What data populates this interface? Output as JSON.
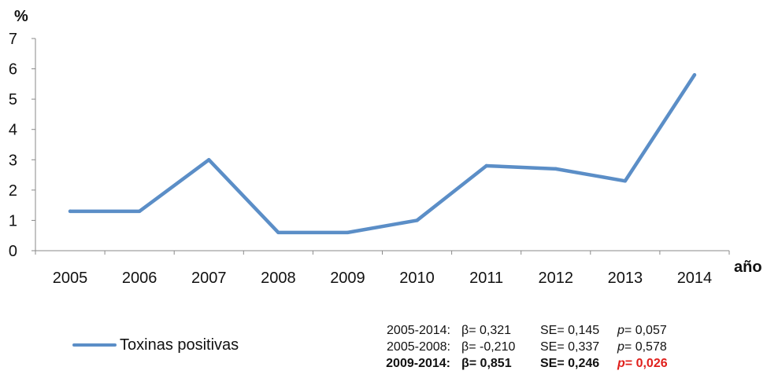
{
  "chart_data": {
    "type": "line",
    "y_unit_label": "%",
    "x_unit_label": "año",
    "categories": [
      "2005",
      "2006",
      "2007",
      "2008",
      "2009",
      "2010",
      "2011",
      "2012",
      "2013",
      "2014"
    ],
    "series": [
      {
        "name": "Toxinas positivas",
        "values": [
          1.3,
          1.3,
          3.0,
          0.6,
          0.6,
          1.0,
          2.8,
          2.7,
          2.3,
          5.8
        ],
        "color": "#5b8ec7"
      }
    ],
    "ylim": [
      0,
      7
    ],
    "yticks": [
      "0",
      "1",
      "2",
      "3",
      "4",
      "5",
      "6",
      "7"
    ],
    "grid": false,
    "legend": "bottom-left"
  },
  "stats": [
    {
      "period": "2005-2014:",
      "beta": "β= 0,321",
      "se": "SE= 0,145",
      "p_label": "p",
      "p_value": "= 0,057",
      "bold": false,
      "significant": false
    },
    {
      "period": "2005-2008:",
      "beta": "β= -0,210",
      "se": "SE= 0,337",
      "p_label": "p",
      "p_value": "= 0,578",
      "bold": false,
      "significant": false
    },
    {
      "period": "2009-2014:",
      "beta": "β= 0,851",
      "se": "SE= 0,246",
      "p_label": "p",
      "p_value": "= 0,026",
      "bold": true,
      "significant": true
    }
  ]
}
